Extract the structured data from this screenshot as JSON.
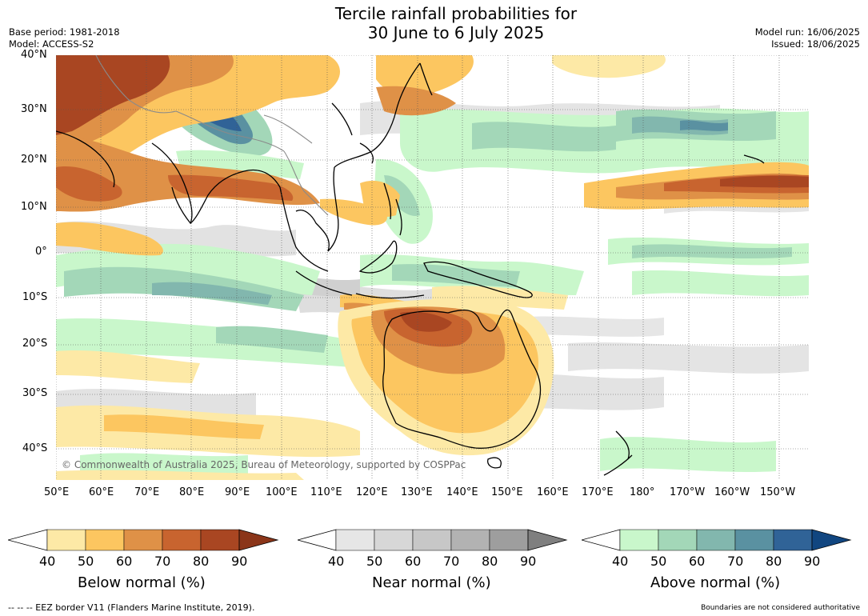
{
  "title_line1": "Tercile rainfall probabilities for",
  "title_line2": "30 June to 6 July 2025",
  "base_period": "Base period: 1981-2018",
  "model": "Model: ACCESS-S2",
  "model_run": "Model run: 16/06/2025",
  "issued": "Issued: 18/06/2025",
  "copyright": "© Commonwealth of Australia 2025, Bureau of Meteorology, supported by COSPPac",
  "lat_labels": [
    "40°N",
    "30°N",
    "20°N",
    "10°N",
    "0°",
    "10°S",
    "20°S",
    "30°S",
    "40°S"
  ],
  "lon_labels": [
    "50°E",
    "60°E",
    "70°E",
    "80°E",
    "90°E",
    "100°E",
    "110°E",
    "120°E",
    "130°E",
    "140°E",
    "150°E",
    "160°E",
    "170°E",
    "180°",
    "170°W",
    "160°W",
    "150°W"
  ],
  "colorbars": [
    {
      "label": "Below normal (%)",
      "ticks": [
        "40",
        "50",
        "60",
        "70",
        "80",
        "90"
      ],
      "colors": [
        "#ffffff",
        "#fde9a6",
        "#fcc660",
        "#df9147",
        "#c8642f",
        "#a94622",
        "#8b3519"
      ]
    },
    {
      "label": "Near normal (%)",
      "ticks": [
        "40",
        "50",
        "60",
        "70",
        "80",
        "90"
      ],
      "colors": [
        "#ffffff",
        "#e6e6e6",
        "#d7d7d7",
        "#c7c7c7",
        "#b2b2b2",
        "#9e9e9e",
        "#7f7f7f"
      ]
    },
    {
      "label": "Above normal (%)",
      "ticks": [
        "40",
        "50",
        "60",
        "70",
        "80",
        "90"
      ],
      "colors": [
        "#ffffff",
        "#c9f7cb",
        "#a3d7b8",
        "#82b7ae",
        "#5a91a1",
        "#306397",
        "#114680"
      ]
    }
  ],
  "eez_note": "--  --  -- EEZ border V11 (Flanders Marine Institute, 2019).",
  "boundary_note": "Boundaries are not considered authoritative"
}
